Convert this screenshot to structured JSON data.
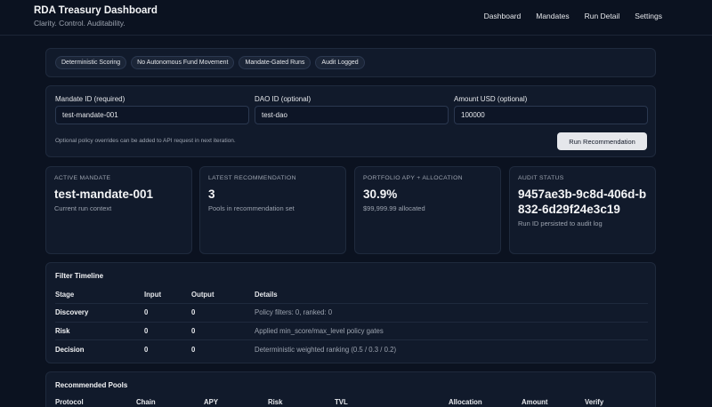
{
  "header": {
    "title": "RDA Treasury Dashboard",
    "subtitle": "Clarity. Control. Auditability.",
    "nav": [
      "Dashboard",
      "Mandates",
      "Run Detail",
      "Settings"
    ]
  },
  "tags": [
    "Deterministic Scoring",
    "No Autonomous Fund Movement",
    "Mandate-Gated Runs",
    "Audit Logged"
  ],
  "form": {
    "mandate_label": "Mandate ID (required)",
    "mandate_value": "test-mandate-001",
    "dao_label": "DAO ID (optional)",
    "dao_value": "test-dao",
    "amount_label": "Amount USD (optional)",
    "amount_value": "100000",
    "hint": "Optional policy overrides can be added to API request in next iteration.",
    "run_label": "Run Recommendation"
  },
  "stats": [
    {
      "label": "Active Mandate",
      "value": "test-mandate-001",
      "caption": "Current run context"
    },
    {
      "label": "Latest Recommendation",
      "value": "3",
      "caption": "Pools in recommendation set"
    },
    {
      "label": "Portfolio APY + Allocation",
      "value": "30.9%",
      "caption": "$99,999.99 allocated"
    },
    {
      "label": "Audit Status",
      "value": "9457ae3b-9c8d-406d-b832-6d29f24e3c19",
      "caption": "Run ID persisted to audit log"
    }
  ],
  "timeline": {
    "title": "Filter Timeline",
    "columns": [
      "Stage",
      "Input",
      "Output",
      "Details"
    ],
    "rows": [
      {
        "stage": "Discovery",
        "input": "0",
        "output": "0",
        "details": "Policy filters: 0, ranked: 0"
      },
      {
        "stage": "Risk",
        "input": "0",
        "output": "0",
        "details": "Applied min_score/max_level policy gates"
      },
      {
        "stage": "Decision",
        "input": "0",
        "output": "0",
        "details": "Deterministic weighted ranking (0.5 / 0.3 / 0.2)"
      }
    ]
  },
  "pools": {
    "title": "Recommended Pools",
    "columns": [
      "Protocol",
      "Chain",
      "APY",
      "Risk",
      "TVL",
      "Allocation",
      "Amount",
      "Verify"
    ]
  }
}
